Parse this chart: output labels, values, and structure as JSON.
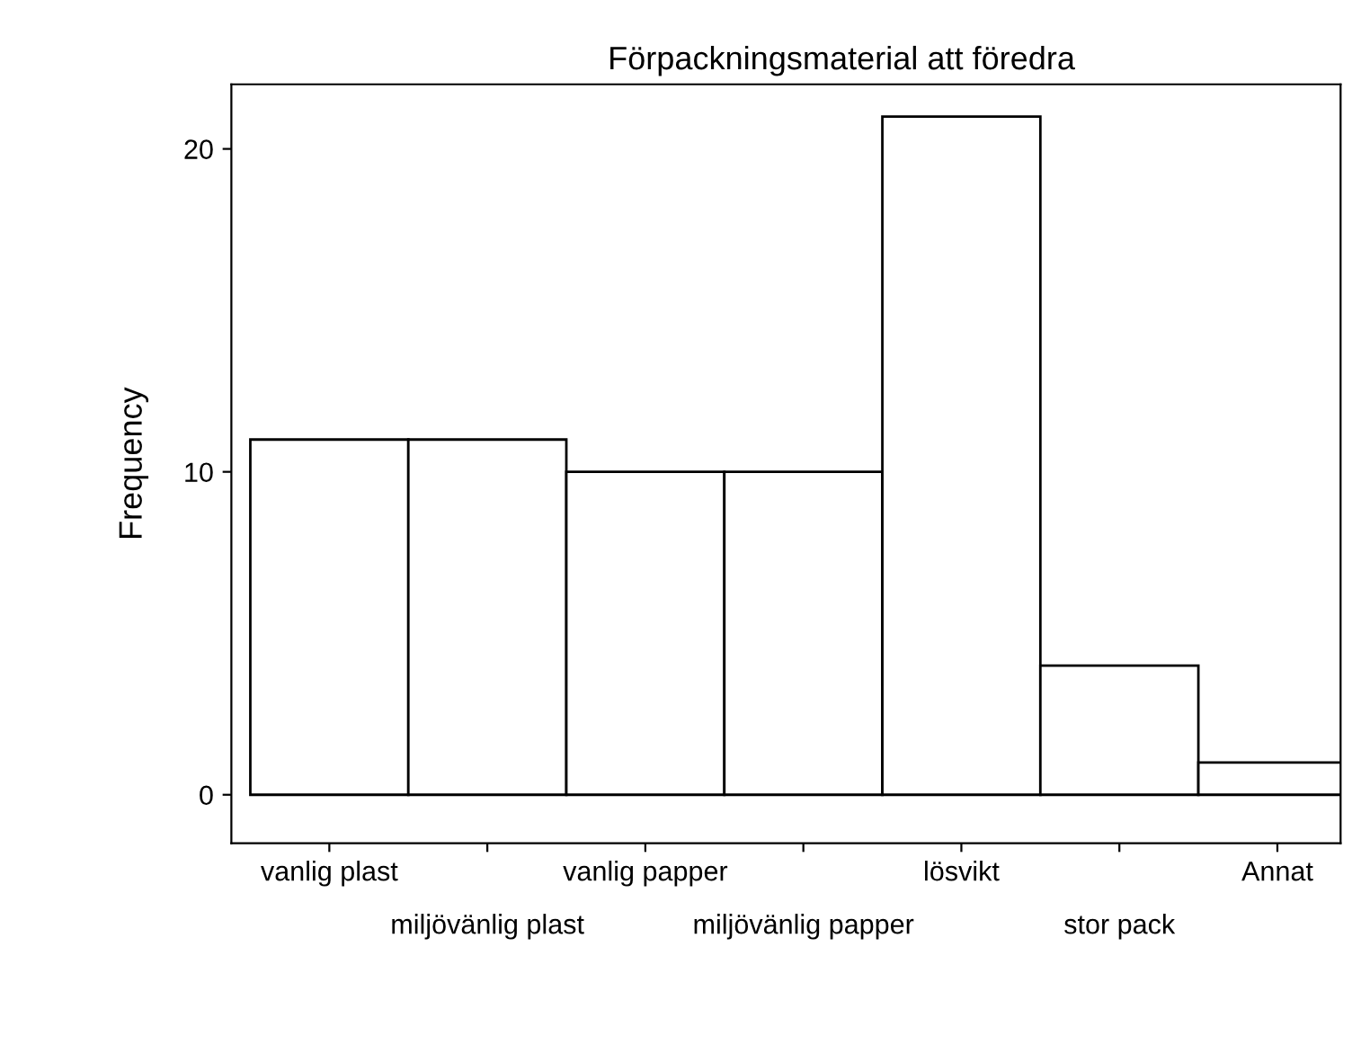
{
  "chart_data": {
    "type": "bar",
    "title": "Förpackningsmaterial att föredra",
    "ylabel": "Frequency",
    "categories": [
      "vanlig plast",
      "miljövänlig plast",
      "vanlig papper",
      "miljövänlig papper",
      "lösvikt",
      "stor pack",
      "Annat"
    ],
    "values": [
      11,
      11,
      10,
      10,
      21,
      4,
      1
    ],
    "color": "#ffffff",
    "ylim": [
      -1.5,
      22
    ],
    "yticks": [
      0,
      10,
      20
    ],
    "grid": false
  }
}
